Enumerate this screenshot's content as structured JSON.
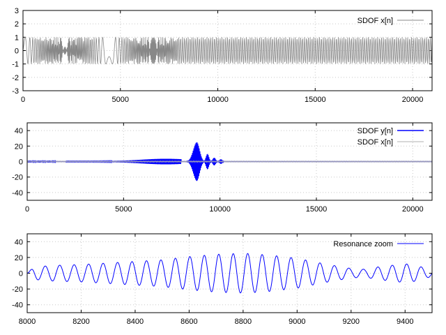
{
  "chart_data": [
    {
      "type": "line",
      "title": "",
      "xlabel": "",
      "ylabel": "",
      "xlim": [
        0,
        21000
      ],
      "ylim": [
        -3,
        3
      ],
      "xticks": [
        0,
        5000,
        10000,
        15000,
        20000
      ],
      "yticks": [
        -3,
        -2,
        -1,
        0,
        1,
        2,
        3
      ],
      "grid": true,
      "legend_position": "top-right",
      "series": [
        {
          "name": "SDOF x[n]",
          "color": "#888888",
          "description_kind": "chirp",
          "amplitude": 1,
          "start_period_samples": 700,
          "end_period_samples": 10
        }
      ]
    },
    {
      "type": "line",
      "title": "",
      "xlabel": "",
      "ylabel": "",
      "xlim": [
        0,
        21000
      ],
      "ylim": [
        -50,
        50
      ],
      "xticks": [
        0,
        5000,
        10000,
        15000,
        20000
      ],
      "yticks": [
        -40,
        -20,
        0,
        20,
        40
      ],
      "grid": true,
      "legend_position": "top-right",
      "series": [
        {
          "name": "SDOF y[n]",
          "color": "#0000ff",
          "peak_x": 8800,
          "peak_amplitude": 25,
          "beat_lobes": [
            {
              "x": 9350,
              "amplitude": 10
            },
            {
              "x": 9700,
              "amplitude": 5
            },
            {
              "x": 10050,
              "amplitude": 3
            }
          ]
        },
        {
          "name": "SDOF x[n]",
          "color": "#b0b0b0",
          "amplitude": 1
        }
      ]
    },
    {
      "type": "line",
      "title": "",
      "xlabel": "",
      "ylabel": "",
      "xlim": [
        8000,
        9500
      ],
      "ylim": [
        -50,
        50
      ],
      "xticks": [
        8000,
        8200,
        8400,
        8600,
        8800,
        9000,
        9200,
        9400
      ],
      "yticks": [
        -40,
        -20,
        0,
        20,
        40
      ],
      "grid": true,
      "legend_position": "top-right",
      "series": [
        {
          "name": "Resonance zoom",
          "color": "#0000ff",
          "points": [
            [
              8000,
              0
            ],
            [
              8025,
              8
            ],
            [
              8100,
              10
            ],
            [
              8200,
              11
            ],
            [
              8300,
              13
            ],
            [
              8400,
              15
            ],
            [
              8500,
              17
            ],
            [
              8600,
              21
            ],
            [
              8700,
              24
            ],
            [
              8780,
              25
            ],
            [
              8820,
              25
            ],
            [
              8900,
              23
            ],
            [
              9000,
              19
            ],
            [
              9100,
              12
            ],
            [
              9200,
              6
            ],
            [
              9250,
              5
            ],
            [
              9300,
              8
            ],
            [
              9400,
              12
            ],
            [
              9440,
              10
            ],
            [
              9500,
              4
            ]
          ],
          "cycle_count": 28
        }
      ]
    }
  ]
}
